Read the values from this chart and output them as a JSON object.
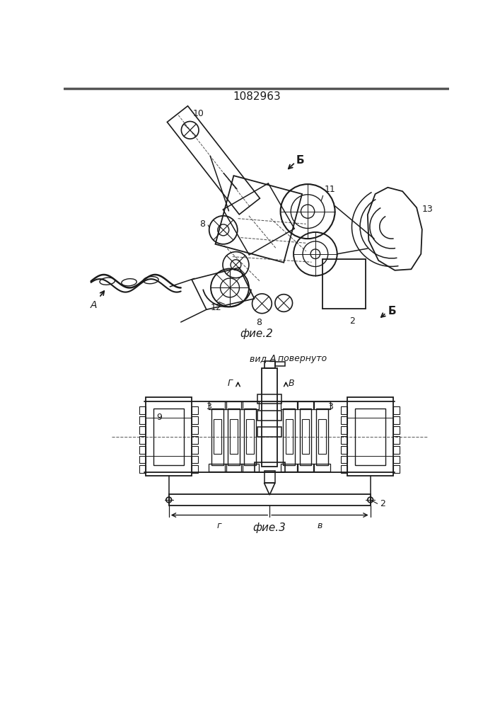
{
  "patent_number": "1082963",
  "fig2_caption": "фие.2",
  "fig3_caption": "фие.3",
  "fig3_title": "вид А повернуто",
  "background_color": "#ffffff",
  "line_color": "#1a1a1a"
}
